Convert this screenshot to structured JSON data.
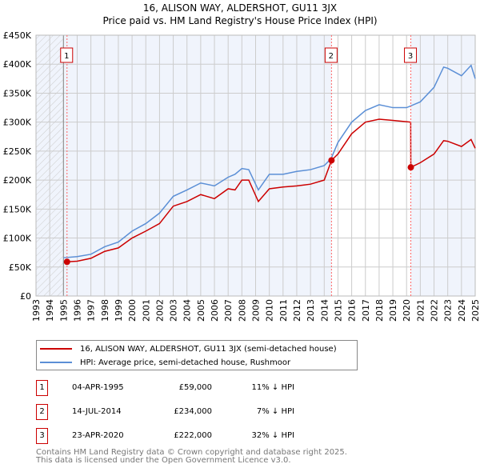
{
  "chart_data": {
    "type": "line",
    "title": "16, ALISON WAY, ALDERSHOT, GU11 3JX",
    "subtitle": "Price paid vs. HM Land Registry's House Price Index (HPI)",
    "xlim": [
      1993,
      2025
    ],
    "ylim": [
      0,
      450000
    ],
    "x_ticks": [
      "1993",
      "1994",
      "1995",
      "1996",
      "1997",
      "1998",
      "1999",
      "2000",
      "2001",
      "2002",
      "2003",
      "2004",
      "2005",
      "2006",
      "2007",
      "2008",
      "2009",
      "2010",
      "2011",
      "2012",
      "2013",
      "2014",
      "2015",
      "2016",
      "2017",
      "2018",
      "2019",
      "2020",
      "2021",
      "2022",
      "2023",
      "2024",
      "2025"
    ],
    "y_ticks": [
      {
        "v": 0,
        "label": "£0"
      },
      {
        "v": 50000,
        "label": "£50K"
      },
      {
        "v": 100000,
        "label": "£100K"
      },
      {
        "v": 150000,
        "label": "£150K"
      },
      {
        "v": 200000,
        "label": "£200K"
      },
      {
        "v": 250000,
        "label": "£250K"
      },
      {
        "v": 300000,
        "label": "£300K"
      },
      {
        "v": 350000,
        "label": "£350K"
      },
      {
        "v": 400000,
        "label": "£400K"
      },
      {
        "v": 450000,
        "label": "£450K"
      }
    ],
    "grid": true,
    "series": [
      {
        "name": "16, ALISON WAY, ALDERSHOT, GU11 3JX (semi-detached house)",
        "color": "#cc0000",
        "x": [
          1995.26,
          1996,
          1997,
          1998,
          1999,
          2000,
          2001,
          2002,
          2003,
          2004,
          2005,
          2006,
          2007,
          2007.5,
          2008,
          2008.5,
          2009.2,
          2010,
          2011,
          2012,
          2013,
          2014,
          2014.53,
          2015,
          2016,
          2017,
          2018,
          2019,
          2020.3,
          2020.31,
          2021,
          2022,
          2022.7,
          2023,
          2024,
          2024.7,
          2025
        ],
        "y": [
          59000,
          60000,
          65000,
          77000,
          83000,
          100000,
          112000,
          125000,
          155000,
          163000,
          175000,
          168000,
          185000,
          183000,
          200000,
          200000,
          163000,
          185000,
          188000,
          190000,
          193000,
          200000,
          234000,
          245000,
          280000,
          300000,
          305000,
          303000,
          300000,
          222000,
          230000,
          245000,
          268000,
          267000,
          258000,
          270000,
          255000
        ]
      },
      {
        "name": "HPI: Average price, semi-detached house, Rushmoor",
        "color": "#5b8fd6",
        "x": [
          1995,
          1996,
          1997,
          1998,
          1999,
          2000,
          2001,
          2002,
          2003,
          2004,
          2005,
          2006,
          2007,
          2007.5,
          2008,
          2008.5,
          2009.2,
          2010,
          2011,
          2012,
          2013,
          2014,
          2014.5,
          2015,
          2016,
          2017,
          2018,
          2019,
          2020,
          2021,
          2022,
          2022.7,
          2023,
          2024,
          2024.7,
          2025
        ],
        "y": [
          66000,
          68000,
          72000,
          85000,
          93000,
          112000,
          125000,
          143000,
          172000,
          183000,
          195000,
          190000,
          205000,
          210000,
          220000,
          218000,
          183000,
          210000,
          210000,
          215000,
          218000,
          225000,
          237000,
          265000,
          300000,
          320000,
          330000,
          325000,
          325000,
          335000,
          360000,
          395000,
          393000,
          380000,
          398000,
          375000
        ]
      }
    ],
    "sales": [
      {
        "label": "1",
        "x": 1995.26,
        "y": 59000,
        "date": "04-APR-1995",
        "price": "£59,000",
        "hpi": "11% ↓ HPI"
      },
      {
        "label": "2",
        "x": 2014.53,
        "y": 234000,
        "date": "14-JUL-2014",
        "price": "£234,000",
        "hpi": "7% ↓ HPI"
      },
      {
        "label": "3",
        "x": 2020.31,
        "y": 222000,
        "date": "23-APR-2020",
        "price": "£222,000",
        "hpi": "32% ↓ HPI"
      }
    ]
  },
  "footer": [
    "Contains HM Land Registry data © Crown copyright and database right 2025.",
    "This data is licensed under the Open Government Licence v3.0."
  ]
}
